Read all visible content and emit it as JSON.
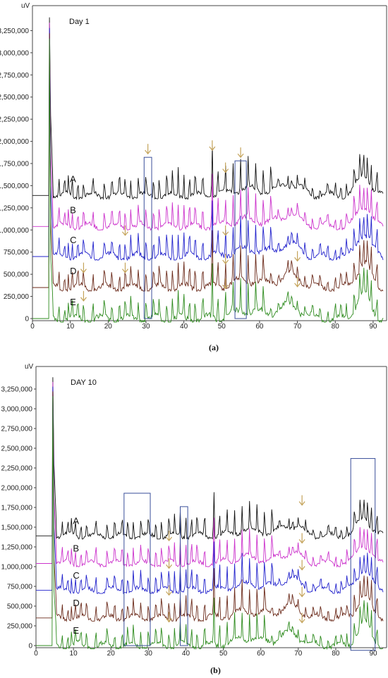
{
  "chart_data": [
    {
      "type": "line",
      "title": "Day 1",
      "ylabel": "uV",
      "caption": "(a)",
      "xlim": [
        0,
        93
      ],
      "ylim": [
        0,
        3500000
      ],
      "xticks": [
        0,
        10,
        20,
        30,
        40,
        50,
        60,
        70,
        80,
        90
      ],
      "yticks": [
        0,
        250000,
        500000,
        750000,
        1000000,
        1250000,
        1500000,
        1750000,
        2000000,
        2250000,
        2500000,
        2750000,
        3000000,
        3250000
      ],
      "ytick_labels": [
        "0",
        "250,000",
        "500,000",
        "750,000",
        "1,000,000",
        "1,250,000",
        "1,500,000",
        "1,750,000",
        "2,000,000",
        "2,250,000",
        "2,500,000",
        "2,750,000",
        "3,000,000",
        "3,250,000"
      ],
      "series": [
        {
          "name": "A",
          "color": "#111111",
          "baseline": 1390000
        },
        {
          "name": "B",
          "color": "#cc33cc",
          "baseline": 1040000
        },
        {
          "name": "C",
          "color": "#2222cc",
          "baseline": 700000
        },
        {
          "name": "D",
          "color": "#6b2a1a",
          "baseline": 350000
        },
        {
          "name": "E",
          "color": "#2e8b1e",
          "baseline": 0
        }
      ],
      "boxes": [
        [
          29.5,
          31.5,
          0,
          1820000
        ],
        [
          53.5,
          56.5,
          0,
          1780000
        ]
      ],
      "arrows": [
        [
          30.5,
          1860000
        ],
        [
          47.5,
          1900000
        ],
        [
          51,
          1650000
        ],
        [
          55,
          1820000
        ],
        [
          24.5,
          940000
        ],
        [
          51,
          940000
        ],
        [
          13.5,
          520000
        ],
        [
          24.5,
          520000
        ],
        [
          51,
          620000
        ],
        [
          70,
          650000
        ],
        [
          13.5,
          200000
        ],
        [
          51,
          340000
        ],
        [
          70,
          360000
        ]
      ]
    },
    {
      "type": "line",
      "title": "DAY 10",
      "ylabel": "uV",
      "caption": "(b)",
      "xlim": [
        0,
        93
      ],
      "ylim": [
        0,
        3500000
      ],
      "xticks": [
        0,
        10,
        20,
        30,
        40,
        50,
        60,
        70,
        80,
        90
      ],
      "yticks": [
        0,
        250000,
        500000,
        750000,
        1000000,
        1250000,
        1500000,
        1750000,
        2000000,
        2250000,
        2500000,
        2750000,
        3000000,
        3250000
      ],
      "ytick_labels": [
        "0",
        "250,000",
        "500,000",
        "750,000",
        "1,000,000",
        "1,250,000",
        "1,500,000",
        "1,750,000",
        "2,000,000",
        "2,250,000",
        "2,500,000",
        "2,750,000",
        "3,000,000",
        "3,250,000"
      ],
      "series": [
        {
          "name": "A",
          "color": "#111111",
          "baseline": 1390000
        },
        {
          "name": "B",
          "color": "#cc33cc",
          "baseline": 1040000
        },
        {
          "name": "C",
          "color": "#2222cc",
          "baseline": 700000
        },
        {
          "name": "D",
          "color": "#6b2a1a",
          "baseline": 350000
        },
        {
          "name": "E",
          "color": "#2e8b1e",
          "baseline": 0
        }
      ],
      "boxes": [
        [
          23.5,
          30.5,
          0,
          1930000
        ],
        [
          38.5,
          40.5,
          0,
          1760000
        ],
        [
          84,
          90.5,
          -60000,
          2370000
        ]
      ],
      "arrows": [
        [
          71,
          1780000
        ],
        [
          35.5,
          1330000
        ],
        [
          71,
          1300000
        ],
        [
          35.5,
          980000
        ],
        [
          71,
          960000
        ],
        [
          35.5,
          640000
        ],
        [
          71,
          620000
        ],
        [
          35.5,
          300000
        ],
        [
          71,
          290000
        ]
      ]
    }
  ]
}
